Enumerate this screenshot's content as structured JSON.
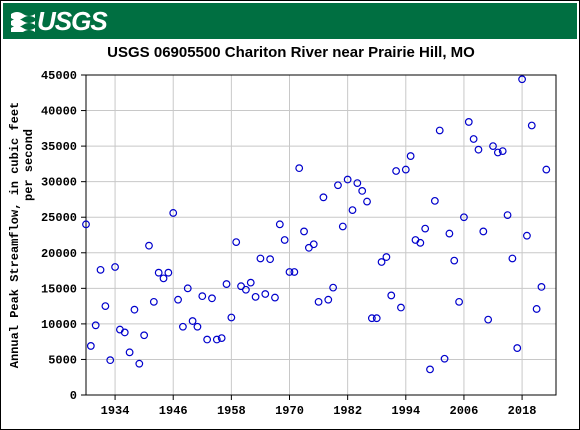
{
  "header": {
    "logo_text": "USGS",
    "logo_icon": "usgs-wave-icon",
    "brand_color": "#006f41"
  },
  "chart_data": {
    "type": "scatter",
    "title": "USGS 06905500 Chariton River near Prairie Hill, MO",
    "ylabel_line1": "Annual Peak Streamflow, in cubic feet",
    "ylabel_line2": "per second",
    "xlim": [
      1928,
      2025
    ],
    "ylim": [
      0,
      45000
    ],
    "xticks": [
      1934,
      1946,
      1958,
      1970,
      1982,
      1994,
      2006,
      2018
    ],
    "yticks": [
      0,
      5000,
      10000,
      15000,
      20000,
      25000,
      30000,
      35000,
      40000,
      45000
    ],
    "grid": true,
    "marker": "open-circle",
    "marker_color": "#0000cc",
    "points": [
      [
        1928,
        24000
      ],
      [
        1929,
        6900
      ],
      [
        1930,
        9800
      ],
      [
        1931,
        17600
      ],
      [
        1932,
        12500
      ],
      [
        1933,
        4900
      ],
      [
        1934,
        18000
      ],
      [
        1935,
        9200
      ],
      [
        1936,
        8800
      ],
      [
        1937,
        6000
      ],
      [
        1938,
        12000
      ],
      [
        1939,
        4400
      ],
      [
        1940,
        8400
      ],
      [
        1941,
        21000
      ],
      [
        1942,
        13100
      ],
      [
        1943,
        17200
      ],
      [
        1944,
        16400
      ],
      [
        1945,
        17200
      ],
      [
        1946,
        25600
      ],
      [
        1947,
        13400
      ],
      [
        1948,
        9600
      ],
      [
        1949,
        15000
      ],
      [
        1950,
        10400
      ],
      [
        1951,
        9600
      ],
      [
        1952,
        13900
      ],
      [
        1953,
        7800
      ],
      [
        1954,
        13600
      ],
      [
        1955,
        7800
      ],
      [
        1956,
        8000
      ],
      [
        1957,
        15600
      ],
      [
        1958,
        10900
      ],
      [
        1959,
        21500
      ],
      [
        1960,
        15300
      ],
      [
        1961,
        14800
      ],
      [
        1962,
        15800
      ],
      [
        1963,
        13800
      ],
      [
        1964,
        19200
      ],
      [
        1965,
        14200
      ],
      [
        1966,
        19100
      ],
      [
        1967,
        13700
      ],
      [
        1968,
        24000
      ],
      [
        1969,
        21800
      ],
      [
        1970,
        17300
      ],
      [
        1971,
        17300
      ],
      [
        1972,
        31900
      ],
      [
        1973,
        23000
      ],
      [
        1974,
        20700
      ],
      [
        1975,
        21200
      ],
      [
        1976,
        13100
      ],
      [
        1977,
        27800
      ],
      [
        1978,
        13400
      ],
      [
        1979,
        15100
      ],
      [
        1980,
        29500
      ],
      [
        1981,
        23700
      ],
      [
        1982,
        30300
      ],
      [
        1983,
        26000
      ],
      [
        1984,
        29800
      ],
      [
        1985,
        28700
      ],
      [
        1986,
        27200
      ],
      [
        1987,
        10800
      ],
      [
        1988,
        10800
      ],
      [
        1989,
        18700
      ],
      [
        1990,
        19400
      ],
      [
        1991,
        14000
      ],
      [
        1992,
        31500
      ],
      [
        1993,
        12300
      ],
      [
        1994,
        31700
      ],
      [
        1995,
        33600
      ],
      [
        1996,
        21800
      ],
      [
        1997,
        21400
      ],
      [
        1998,
        23400
      ],
      [
        1999,
        3600
      ],
      [
        2000,
        27300
      ],
      [
        2001,
        37200
      ],
      [
        2002,
        5100
      ],
      [
        2003,
        22700
      ],
      [
        2004,
        18900
      ],
      [
        2005,
        13100
      ],
      [
        2006,
        25000
      ],
      [
        2007,
        38400
      ],
      [
        2008,
        36000
      ],
      [
        2009,
        34500
      ],
      [
        2010,
        23000
      ],
      [
        2011,
        10600
      ],
      [
        2012,
        35000
      ],
      [
        2013,
        34100
      ],
      [
        2014,
        34300
      ],
      [
        2015,
        25300
      ],
      [
        2016,
        19200
      ],
      [
        2017,
        6600
      ],
      [
        2018,
        44400
      ],
      [
        2019,
        22400
      ],
      [
        2020,
        37900
      ],
      [
        2021,
        12100
      ],
      [
        2022,
        15200
      ],
      [
        2023,
        31700
      ]
    ]
  }
}
